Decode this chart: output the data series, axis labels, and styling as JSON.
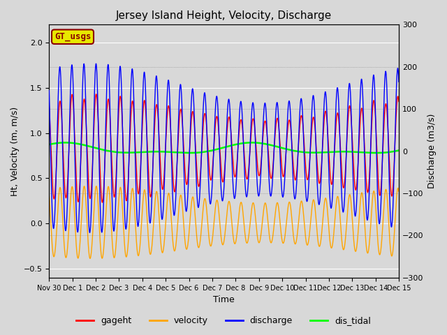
{
  "title": "Jersey Island Height, Velocity, Discharge",
  "ylabel_left": "Ht, Velocity (m, m/s)",
  "ylabel_right": "Discharge (m3/s)",
  "xlabel": "Time",
  "ylim_left": [
    -0.6,
    2.2
  ],
  "ylim_right": [
    -300,
    300
  ],
  "bg_color": "#d8d8d8",
  "plot_bg_color": "#d8d8d8",
  "gageht_color": "red",
  "velocity_color": "orange",
  "discharge_color": "blue",
  "dis_tidal_color": "lime",
  "legend_labels": [
    "gageht",
    "velocity",
    "discharge",
    "dis_tidal"
  ],
  "annotation_text": "GT_usgs",
  "annotation_facecolor": "#e8e800",
  "annotation_edgecolor": "#8b0000",
  "x_tick_labels": [
    "Nov 30",
    "Dec 1",
    "Dec 2",
    "Dec 3",
    "Dec 4",
    "Dec 5",
    "Dec 6",
    "Dec 7",
    "Dec 8",
    "Dec 9",
    "Dec 10",
    "Dec 11",
    "Dec 12",
    "Dec 13",
    "Dec 14",
    "Dec 15"
  ],
  "title_fontsize": 11,
  "axis_fontsize": 9,
  "tick_fontsize": 8,
  "legend_fontsize": 9,
  "linewidth": 1.0,
  "green_linewidth": 1.8
}
